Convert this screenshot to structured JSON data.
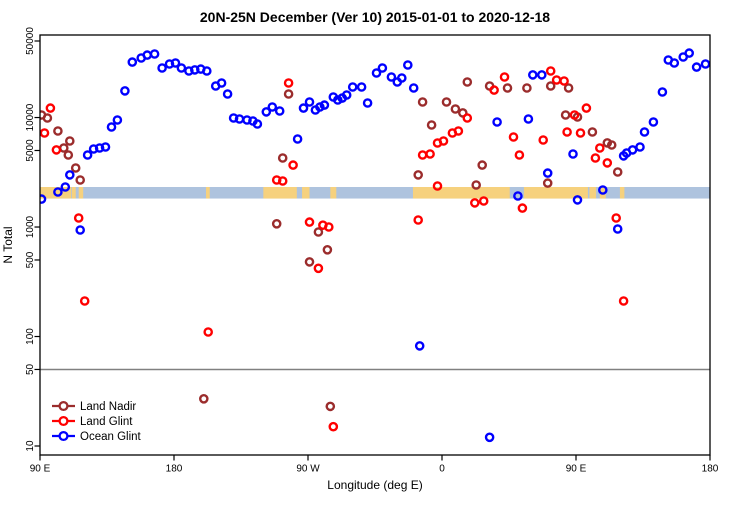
{
  "title": "20N-25N December (Ver 10)   2015-01-01 to 2020-12-18",
  "legend": {
    "entries": [
      {
        "label": "Land Nadir",
        "color": "#9B2C2C"
      },
      {
        "label": "Land Glint",
        "color": "#FF0000"
      },
      {
        "label": "Ocean Glint",
        "color": "#0000FF"
      }
    ]
  },
  "chart_data": {
    "type": "scatter",
    "title": "20N-25N December (Ver 10)   2015-01-01 to 2020-12-18",
    "xlabel": "Longitude (deg E)",
    "ylabel": "N Total",
    "x_axis": {
      "note": "axis spans 450 deg eastward starting at 90E; 270=90W, 360=0, 450=90E, 540=180",
      "range": [
        90,
        540
      ],
      "ticks": [
        90,
        180,
        270,
        360,
        450,
        540
      ],
      "tick_labels": [
        "90 E",
        "180",
        "90 W",
        "0",
        "90 E",
        "180"
      ]
    },
    "y_axis": {
      "scale": "log",
      "range": [
        10,
        50000
      ],
      "ticks": [
        50000,
        10000,
        5000,
        1000,
        500,
        100,
        50,
        10
      ],
      "tick_labels": [
        "50000",
        "10000",
        "5000",
        "1000",
        "500",
        "100",
        "50",
        "10"
      ]
    },
    "reference_line": {
      "value": 50,
      "color": "#808080"
    },
    "map_strip": {
      "ocean_color": "#AEC3DE",
      "land_color": "#F6D17E",
      "top_value": 2320,
      "bottom_value": 1820,
      "land_segments_deg": [
        [
          90,
          111
        ],
        [
          111.5,
          114
        ],
        [
          116,
          119
        ],
        [
          201.5,
          204
        ],
        [
          240,
          262.5
        ],
        [
          266,
          271
        ],
        [
          285,
          289
        ],
        [
          340.5,
          405.5
        ],
        [
          415,
          458
        ],
        [
          459,
          463.5
        ],
        [
          466,
          470
        ],
        [
          479.5,
          482.5
        ]
      ]
    },
    "series": [
      {
        "name": "Land Nadir",
        "color": "#9B2C2C",
        "points": [
          [
            91,
            10550
          ],
          [
            95,
            9900
          ],
          [
            102,
            7530
          ],
          [
            110,
            6100
          ],
          [
            106,
            5270
          ],
          [
            109,
            4550
          ],
          [
            114,
            3460
          ],
          [
            117,
            2690
          ],
          [
            257,
            16400
          ],
          [
            253,
            4270
          ],
          [
            249,
            1070
          ],
          [
            277,
            900
          ],
          [
            283,
            620
          ],
          [
            271,
            480
          ],
          [
            200,
            27
          ],
          [
            285,
            23
          ],
          [
            377,
            21100
          ],
          [
            392,
            19400
          ],
          [
            404,
            18600
          ],
          [
            417,
            18600
          ],
          [
            433,
            19400
          ],
          [
            445,
            18600
          ],
          [
            347,
            13870
          ],
          [
            363,
            13870
          ],
          [
            369,
            11970
          ],
          [
            374,
            11020
          ],
          [
            353,
            8550
          ],
          [
            387,
            3680
          ],
          [
            344,
            2990
          ],
          [
            383,
            2420
          ],
          [
            431,
            2520
          ],
          [
            443,
            10550
          ],
          [
            451,
            10120
          ],
          [
            461,
            7380
          ],
          [
            471,
            5860
          ],
          [
            474,
            5610
          ],
          [
            478,
            3180
          ]
        ]
      },
      {
        "name": "Land Glint",
        "color": "#FF0000",
        "points": [
          [
            97,
            12200
          ],
          [
            93,
            7230
          ],
          [
            101,
            5060
          ],
          [
            116,
            1210
          ],
          [
            120,
            211
          ],
          [
            257,
            20650
          ],
          [
            260,
            3680
          ],
          [
            249,
            2690
          ],
          [
            253,
            2630
          ],
          [
            271,
            1110
          ],
          [
            280,
            1040
          ],
          [
            284,
            1000
          ],
          [
            277,
            420
          ],
          [
            203,
            110
          ],
          [
            287,
            15
          ],
          [
            344,
            1160
          ],
          [
            357,
            2370
          ],
          [
            382,
            1660
          ],
          [
            388,
            1730
          ],
          [
            414,
            1490
          ],
          [
            357,
            5850
          ],
          [
            361,
            6100
          ],
          [
            367,
            7230
          ],
          [
            371,
            7530
          ],
          [
            347,
            4550
          ],
          [
            352,
            4640
          ],
          [
            377,
            9900
          ],
          [
            395,
            17800
          ],
          [
            402,
            23450
          ],
          [
            408,
            6640
          ],
          [
            428,
            6240
          ],
          [
            412,
            4550
          ],
          [
            444,
            7380
          ],
          [
            433,
            26600
          ],
          [
            437,
            22030
          ],
          [
            442,
            21580
          ],
          [
            449,
            10550
          ],
          [
            453,
            7230
          ],
          [
            457,
            12200
          ],
          [
            466,
            5270
          ],
          [
            463,
            4270
          ],
          [
            471,
            3850
          ],
          [
            477,
            1210
          ],
          [
            482,
            211
          ]
        ]
      },
      {
        "name": "Ocean Glint",
        "color": "#0000FF",
        "points": [
          [
            91,
            1800
          ],
          [
            102,
            2090
          ],
          [
            107,
            2320
          ],
          [
            110,
            2990
          ],
          [
            117,
            940
          ],
          [
            122,
            4550
          ],
          [
            126,
            5160
          ],
          [
            130,
            5270
          ],
          [
            134,
            5380
          ],
          [
            138,
            8200
          ],
          [
            142,
            9500
          ],
          [
            147,
            17500
          ],
          [
            152,
            32100
          ],
          [
            158,
            35000
          ],
          [
            162,
            37200
          ],
          [
            167,
            38000
          ],
          [
            172,
            28350
          ],
          [
            177,
            30850
          ],
          [
            181,
            31500
          ],
          [
            185,
            28350
          ],
          [
            190,
            26600
          ],
          [
            194,
            27200
          ],
          [
            198,
            27700
          ],
          [
            202,
            26600
          ],
          [
            208,
            19400
          ],
          [
            212,
            20650
          ],
          [
            216,
            16400
          ],
          [
            220,
            9900
          ],
          [
            224,
            9700
          ],
          [
            229,
            9500
          ],
          [
            233,
            9300
          ],
          [
            236,
            8730
          ],
          [
            242,
            11250
          ],
          [
            246,
            12480
          ],
          [
            251,
            11480
          ],
          [
            263,
            6370
          ],
          [
            267,
            12200
          ],
          [
            271,
            13870
          ],
          [
            275,
            11720
          ],
          [
            278,
            12480
          ],
          [
            281,
            13000
          ],
          [
            287,
            15400
          ],
          [
            290,
            14450
          ],
          [
            293,
            15060
          ],
          [
            296,
            16070
          ],
          [
            300,
            19000
          ],
          [
            306,
            19000
          ],
          [
            310,
            13580
          ],
          [
            316,
            25530
          ],
          [
            320,
            28350
          ],
          [
            326,
            23450
          ],
          [
            330,
            21100
          ],
          [
            333,
            22960
          ],
          [
            337,
            30200
          ],
          [
            341,
            18600
          ],
          [
            345,
            82
          ],
          [
            392,
            12
          ],
          [
            397,
            9100
          ],
          [
            411,
            1920
          ],
          [
            418,
            9700
          ],
          [
            421,
            24500
          ],
          [
            427,
            24500
          ],
          [
            431,
            3110
          ],
          [
            448,
            4640
          ],
          [
            451,
            1770
          ],
          [
            468,
            2180
          ],
          [
            478,
            960
          ],
          [
            482,
            4460
          ],
          [
            484,
            4740
          ],
          [
            488,
            5060
          ],
          [
            493,
            5380
          ],
          [
            496,
            7380
          ],
          [
            502,
            9100
          ],
          [
            508,
            17100
          ],
          [
            512,
            33500
          ],
          [
            516,
            31500
          ],
          [
            522,
            35700
          ],
          [
            526,
            38800
          ],
          [
            531,
            28900
          ],
          [
            537,
            30850
          ]
        ]
      }
    ]
  }
}
